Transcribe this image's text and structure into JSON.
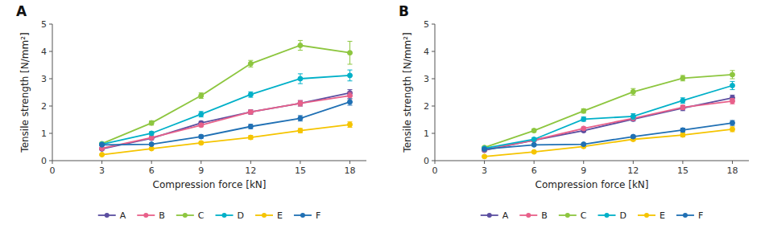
{
  "chart_data": [
    {
      "type": "line",
      "title": "A",
      "xlabel": "Compression force [kN]",
      "ylabel": "Tensile strength [N/mm²]",
      "x": [
        3,
        6,
        9,
        12,
        15,
        18
      ],
      "xlim": [
        0,
        19
      ],
      "xticks": [
        0,
        3,
        6,
        9,
        12,
        15,
        18
      ],
      "ylim": [
        0,
        5
      ],
      "yticks": [
        0,
        1,
        2,
        3,
        4,
        5
      ],
      "grid": false,
      "legend": "bottom",
      "marker": "o",
      "series": [
        {
          "name": "A",
          "color": "#5b4ea0",
          "values": [
            0.43,
            0.82,
            1.38,
            1.78,
            2.1,
            2.48
          ],
          "errors": [
            0.04,
            0.05,
            0.06,
            0.08,
            0.1,
            0.12
          ]
        },
        {
          "name": "B",
          "color": "#e8608a",
          "values": [
            0.45,
            0.84,
            1.3,
            1.78,
            2.1,
            2.38
          ],
          "errors": [
            0.04,
            0.05,
            0.06,
            0.07,
            0.1,
            0.12
          ]
        },
        {
          "name": "C",
          "color": "#8dc63f",
          "values": [
            0.62,
            1.38,
            2.38,
            3.55,
            4.22,
            3.95
          ],
          "errors": [
            0.05,
            0.08,
            0.1,
            0.12,
            0.18,
            0.42
          ]
        },
        {
          "name": "D",
          "color": "#00b0c8",
          "values": [
            0.6,
            1.0,
            1.7,
            2.42,
            3.0,
            3.12
          ],
          "errors": [
            0.05,
            0.06,
            0.1,
            0.1,
            0.18,
            0.2
          ]
        },
        {
          "name": "E",
          "color": "#f5c400",
          "values": [
            0.22,
            0.44,
            0.65,
            0.85,
            1.1,
            1.32
          ],
          "errors": [
            0.03,
            0.04,
            0.05,
            0.07,
            0.08,
            0.1
          ]
        },
        {
          "name": "F",
          "color": "#2070b4",
          "values": [
            0.58,
            0.6,
            0.88,
            1.25,
            1.55,
            2.15
          ],
          "errors": [
            0.04,
            0.04,
            0.06,
            0.08,
            0.1,
            0.12
          ]
        }
      ]
    },
    {
      "type": "line",
      "title": "B",
      "xlabel": "Compression force [kN]",
      "ylabel": "Tensile strength [N/mm²]",
      "x": [
        3,
        6,
        9,
        12,
        15,
        18
      ],
      "xlim": [
        0,
        19
      ],
      "xticks": [
        0,
        3,
        6,
        9,
        12,
        15,
        18
      ],
      "ylim": [
        0,
        5
      ],
      "yticks": [
        0,
        1,
        2,
        3,
        4,
        5
      ],
      "grid": false,
      "legend": "bottom",
      "marker": "o",
      "series": [
        {
          "name": "A",
          "color": "#5b4ea0",
          "values": [
            0.38,
            0.75,
            1.1,
            1.52,
            1.92,
            2.3
          ],
          "errors": [
            0.03,
            0.04,
            0.05,
            0.07,
            0.09,
            0.1
          ]
        },
        {
          "name": "B",
          "color": "#e8608a",
          "values": [
            0.4,
            0.75,
            1.18,
            1.55,
            1.95,
            2.18
          ],
          "errors": [
            0.03,
            0.04,
            0.05,
            0.06,
            0.08,
            0.1
          ]
        },
        {
          "name": "C",
          "color": "#8dc63f",
          "values": [
            0.48,
            1.1,
            1.82,
            2.52,
            3.02,
            3.15
          ],
          "errors": [
            0.04,
            0.06,
            0.08,
            0.12,
            0.1,
            0.15
          ]
        },
        {
          "name": "D",
          "color": "#00b0c8",
          "values": [
            0.45,
            0.78,
            1.52,
            1.62,
            2.2,
            2.75
          ],
          "errors": [
            0.04,
            0.05,
            0.08,
            0.1,
            0.1,
            0.15
          ]
        },
        {
          "name": "E",
          "color": "#f5c400",
          "values": [
            0.15,
            0.32,
            0.52,
            0.78,
            0.94,
            1.15
          ],
          "errors": [
            0.03,
            0.04,
            0.05,
            0.06,
            0.07,
            0.09
          ]
        },
        {
          "name": "F",
          "color": "#2070b4",
          "values": [
            0.42,
            0.58,
            0.6,
            0.88,
            1.12,
            1.38
          ],
          "errors": [
            0.03,
            0.04,
            0.04,
            0.05,
            0.07,
            0.09
          ]
        }
      ]
    }
  ]
}
